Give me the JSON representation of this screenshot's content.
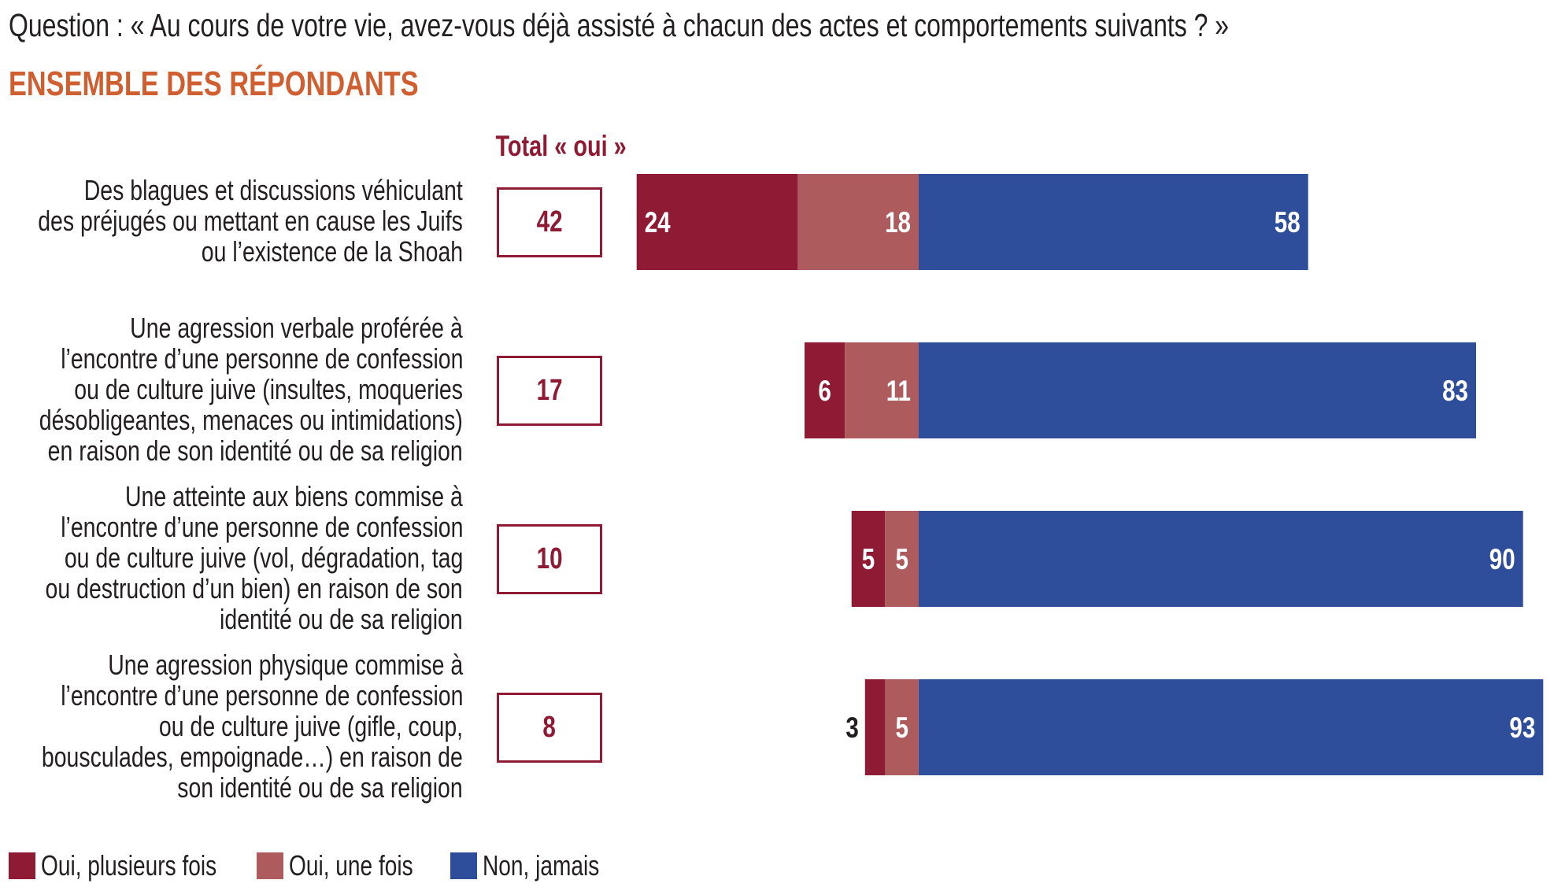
{
  "header": {
    "question": "Question : « Au cours de votre vie, avez-vous déjà assisté à chacun des actes et comportements suivants ? »",
    "subtitle": "ENSEMBLE DES RÉPONDANTS",
    "total_header": "Total « oui »"
  },
  "colors": {
    "oui_plusieurs": "#8e1a33",
    "oui_une": "#ad5b5c",
    "non_jamais": "#2e4e9c",
    "subtitle": "#cf5f30",
    "total": "#8e1a33",
    "text": "#231f20",
    "bar_label": "#ffffff"
  },
  "rows": [
    {
      "label_lines": [
        "Des blagues et discussions véhiculant",
        "des préjugés ou mettant en cause les Juifs",
        "ou l’existence de la Shoah"
      ],
      "total": "42"
    },
    {
      "label_lines": [
        "Une agression verbale proférée à",
        "l’encontre d’une personne de confession",
        "ou de culture juive (insultes, moqueries",
        "désobligeantes, menaces ou intimidations)",
        "en raison de son identité ou de sa religion"
      ],
      "total": "17"
    },
    {
      "label_lines": [
        "Une atteinte aux biens commise à",
        "l’encontre d’une personne de confession",
        "ou de culture juive (vol, dégradation, tag",
        "ou destruction d’un bien) en raison de son",
        "identité ou de sa religion"
      ],
      "total": "10"
    },
    {
      "label_lines": [
        "Une agression physique commise à",
        "l’encontre d’une personne de confession",
        "ou de culture juive (gifle, coup,",
        "bousculades, empoignade…) en raison de",
        "son identité ou de sa religion"
      ],
      "total": "8"
    }
  ],
  "legend": [
    {
      "label": "Oui, plusieurs fois",
      "color": "#8e1a33"
    },
    {
      "label": "Oui, une fois",
      "color": "#ad5b5c"
    },
    {
      "label": "Non, jamais",
      "color": "#2e4e9c"
    }
  ],
  "chart_data": {
    "type": "bar",
    "orientation": "horizontal",
    "stacked": true,
    "diverging_at": "between 'Oui, une fois' and 'Non, jamais'",
    "title": "Question : « Au cours de votre vie, avez-vous déjà assisté à chacun des actes et comportements suivants ? »",
    "subtitle": "ENSEMBLE DES RÉPONDANTS",
    "unit": "%",
    "categories": [
      "Des blagues et discussions véhiculant des préjugés ou mettant en cause les Juifs ou l’existence de la Shoah",
      "Une agression verbale proférée à l’encontre d’une personne de confession ou de culture juive (insultes, moqueries désobligeantes, menaces ou intimidations) en raison de son identité ou de sa religion",
      "Une atteinte aux biens commise à l’encontre d’une personne de confession ou de culture juive (vol, dégradation, tag ou destruction d’un bien) en raison de son identité ou de sa religion",
      "Une agression physique commise à l’encontre d’une personne de confession ou de culture juive (gifle, coup, bousculades, empoignade…) en raison de son identité ou de sa religion"
    ],
    "series": [
      {
        "name": "Oui, plusieurs fois",
        "values": [
          24,
          6,
          5,
          3
        ],
        "color": "#8e1a33"
      },
      {
        "name": "Oui, une fois",
        "values": [
          18,
          11,
          5,
          5
        ],
        "color": "#ad5b5c"
      },
      {
        "name": "Non, jamais",
        "values": [
          58,
          83,
          90,
          93
        ],
        "color": "#2e4e9c"
      }
    ],
    "totals_label": "Total « oui »",
    "totals": [
      42,
      17,
      10,
      8
    ],
    "data_labels": [
      [
        "24",
        "18",
        "58"
      ],
      [
        "6",
        "11",
        "83"
      ],
      [
        "5",
        "5",
        "90"
      ],
      [
        "3",
        "5",
        "93"
      ]
    ],
    "outside_labels": [
      [
        false,
        false,
        false
      ],
      [
        false,
        false,
        false
      ],
      [
        false,
        false,
        false
      ],
      [
        true,
        false,
        false
      ]
    ],
    "legend_position": "bottom-left",
    "grid": false,
    "xlabel": "",
    "ylabel": ""
  }
}
